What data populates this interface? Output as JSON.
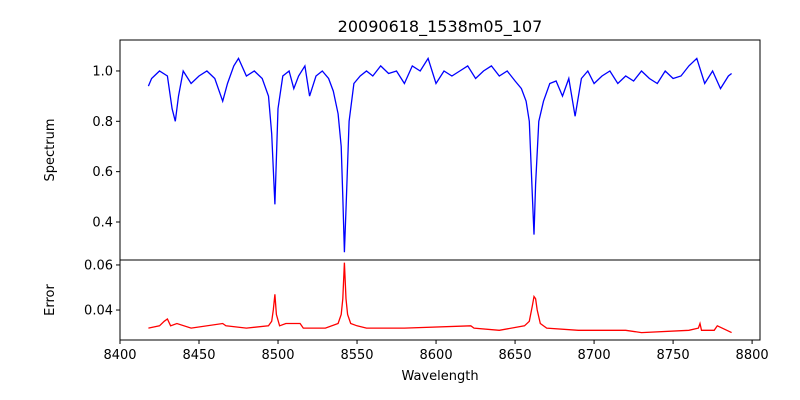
{
  "chart_data": [
    {
      "type": "line",
      "title": "20090618_1538m05_107",
      "xlabel": "Wavelength",
      "ylabel": "Spectrum",
      "xlim": [
        8400,
        8805
      ],
      "ylim": [
        0.249,
        1.123
      ],
      "xticks": [
        8400,
        8450,
        8500,
        8550,
        8600,
        8650,
        8700,
        8750,
        8800
      ],
      "yticks": [
        0.4,
        0.6,
        0.8,
        1.0
      ],
      "ytick_labels": [
        "0.4",
        "0.6",
        "0.8",
        "1.0"
      ],
      "color": "#0000ff",
      "series": [
        {
          "name": "Spectrum",
          "x": [
            8418,
            8420,
            8425,
            8430,
            8433,
            8435,
            8437,
            8440,
            8445,
            8450,
            8455,
            8460,
            8465,
            8468,
            8472,
            8475,
            8480,
            8485,
            8490,
            8494,
            8496,
            8498,
            8500,
            8503,
            8507,
            8510,
            8513,
            8517,
            8520,
            8524,
            8528,
            8532,
            8535,
            8538,
            8540,
            8541,
            8542,
            8543,
            8545,
            8548,
            8552,
            8556,
            8560,
            8565,
            8570,
            8575,
            8580,
            8585,
            8590,
            8595,
            8600,
            8605,
            8610,
            8615,
            8620,
            8625,
            8630,
            8635,
            8640,
            8645,
            8650,
            8654,
            8657,
            8659,
            8661,
            8662,
            8663,
            8665,
            8668,
            8672,
            8676,
            8680,
            8684,
            8688,
            8692,
            8696,
            8700,
            8705,
            8710,
            8715,
            8720,
            8725,
            8730,
            8735,
            8740,
            8745,
            8750,
            8755,
            8760,
            8765,
            8770,
            8775,
            8780,
            8785,
            8787
          ],
          "y": [
            0.94,
            0.97,
            1.0,
            0.98,
            0.85,
            0.8,
            0.9,
            1.0,
            0.95,
            0.98,
            1.0,
            0.97,
            0.88,
            0.95,
            1.02,
            1.05,
            0.98,
            1.0,
            0.97,
            0.9,
            0.75,
            0.47,
            0.85,
            0.98,
            1.0,
            0.93,
            0.98,
            1.02,
            0.9,
            0.98,
            1.0,
            0.97,
            0.92,
            0.83,
            0.7,
            0.5,
            0.28,
            0.45,
            0.8,
            0.95,
            0.98,
            1.0,
            0.98,
            1.02,
            0.99,
            1.0,
            0.95,
            1.02,
            1.0,
            1.05,
            0.95,
            1.0,
            0.98,
            1.0,
            1.02,
            0.97,
            1.0,
            1.02,
            0.98,
            1.0,
            0.96,
            0.93,
            0.88,
            0.8,
            0.5,
            0.35,
            0.55,
            0.8,
            0.88,
            0.95,
            0.96,
            0.9,
            0.97,
            0.82,
            0.97,
            1.0,
            0.95,
            0.98,
            1.0,
            0.95,
            0.98,
            0.96,
            1.0,
            0.97,
            0.95,
            1.0,
            0.97,
            0.98,
            1.02,
            1.05,
            0.95,
            1.0,
            0.93,
            0.98,
            0.99
          ]
        }
      ]
    },
    {
      "type": "line",
      "xlabel": "Wavelength",
      "ylabel": "Error",
      "xlim": [
        8400,
        8805
      ],
      "ylim": [
        0.0267,
        0.0622
      ],
      "xticks": [
        8400,
        8450,
        8500,
        8550,
        8600,
        8650,
        8700,
        8750,
        8800
      ],
      "yticks": [
        0.04,
        0.06
      ],
      "ytick_labels": [
        "0.04",
        "0.06"
      ],
      "color": "#ff0000",
      "series": [
        {
          "name": "Error",
          "x": [
            8418,
            8425,
            8428,
            8430,
            8432,
            8436,
            8445,
            8465,
            8467,
            8480,
            8494,
            8496,
            8497,
            8498,
            8499,
            8501,
            8505,
            8514,
            8516,
            8530,
            8538,
            8540,
            8541,
            8542,
            8543,
            8544,
            8546,
            8550,
            8556,
            8580,
            8622,
            8624,
            8640,
            8656,
            8659,
            8661,
            8662,
            8663,
            8664,
            8666,
            8670,
            8690,
            8720,
            8730,
            8760,
            8766,
            8767,
            8768,
            8776,
            8778,
            8787
          ],
          "y": [
            0.032,
            0.033,
            0.035,
            0.036,
            0.033,
            0.034,
            0.032,
            0.034,
            0.033,
            0.032,
            0.033,
            0.035,
            0.04,
            0.047,
            0.038,
            0.033,
            0.034,
            0.034,
            0.032,
            0.032,
            0.034,
            0.038,
            0.045,
            0.061,
            0.045,
            0.038,
            0.034,
            0.033,
            0.032,
            0.032,
            0.033,
            0.032,
            0.031,
            0.033,
            0.035,
            0.042,
            0.046,
            0.045,
            0.04,
            0.034,
            0.032,
            0.031,
            0.031,
            0.03,
            0.031,
            0.032,
            0.034,
            0.031,
            0.031,
            0.033,
            0.03
          ]
        }
      ]
    }
  ]
}
